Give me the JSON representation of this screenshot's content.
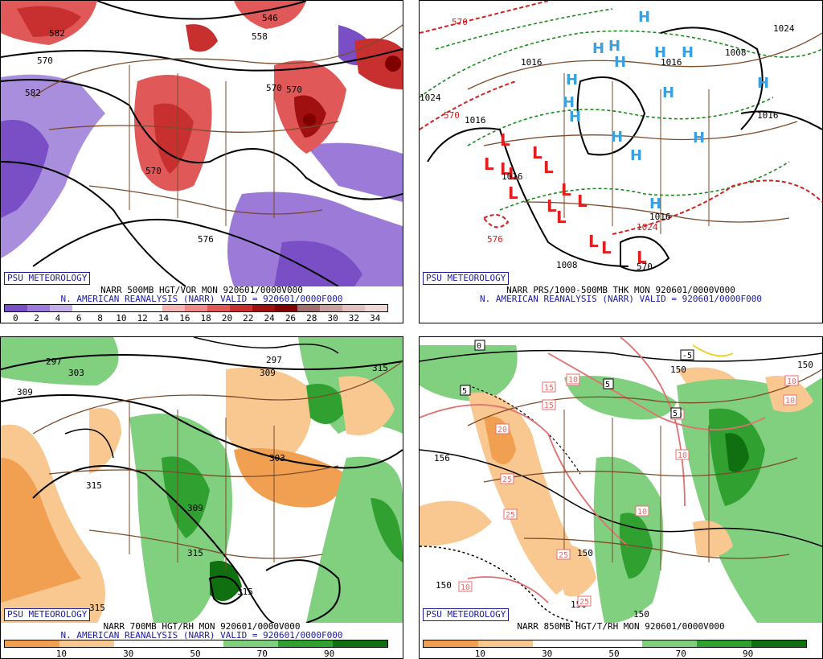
{
  "badge": "PSU METEOROLOGY",
  "panels": {
    "tl": {
      "line1": "NARR 500MB HGT/VOR MON 920601/0000V000",
      "line2": "N. AMERICAN REANALYSIS (NARR) VALID = 920601/0000F000",
      "contours": [
        "570",
        "570",
        "582",
        "576",
        "546",
        "558",
        "570",
        "582",
        "570"
      ],
      "colorbar": {
        "colors": [
          "#7a4fc6",
          "#9b7ad8",
          "#c3b0e8",
          "#ffffff",
          "#ffffff",
          "#ffffff",
          "#ffffff",
          "#f5b5b5",
          "#f08a8a",
          "#e05858",
          "#c83030",
          "#a01010",
          "#800000",
          "#a07070",
          "#c8a0a0",
          "#e0c0c0",
          "#f0d8d8"
        ],
        "ticks": [
          "0",
          "2",
          "4",
          "6",
          "8",
          "10",
          "12",
          "14",
          "16",
          "18",
          "20",
          "22",
          "24",
          "26",
          "28",
          "30",
          "32",
          "34"
        ]
      }
    },
    "tr": {
      "line1": "NARR PRS/1000-500MB THK MON 920601/0000V000",
      "line2": "N. AMERICAN REANALYSIS (NARR) VALID = 920601/0000F000",
      "contours": [
        "570",
        "1024",
        "1016",
        "1024",
        "1016",
        "1016",
        "570",
        "1016",
        "1016",
        "570",
        "1008",
        "1008",
        "1016",
        "1024",
        "576"
      ]
    },
    "bl": {
      "line1": "NARR 700MB HGT/RH MON 920601/0000V000",
      "line2": "N. AMERICAN REANALYSIS (NARR) VALID = 920601/0000F000",
      "contours": [
        "297",
        "303",
        "309",
        "297",
        "309",
        "315",
        "315",
        "309",
        "303",
        "315",
        "315",
        "315"
      ],
      "colorbar": {
        "colors": [
          "#f0a050",
          "#f8c890",
          "#ffffff",
          "#ffffff",
          "#80d080",
          "#30a030",
          "#107010"
        ],
        "ticks": [
          "10",
          "30",
          "50",
          "70",
          "90"
        ]
      }
    },
    "br": {
      "line1": "NARR 850MB HGT/T/RH MON 920601/0000V000",
      "contours": [
        "150",
        "150",
        "150",
        "150",
        "150",
        "150",
        "156"
      ],
      "temps": [
        "0",
        "5",
        "15",
        "15",
        "5",
        "10",
        "10",
        "20",
        "25",
        "25",
        "25",
        "25",
        "10",
        "10",
        "10",
        "10",
        "-5",
        "10",
        "10",
        "5"
      ],
      "colorbar": {
        "colors": [
          "#f0a050",
          "#f8c890",
          "#ffffff",
          "#ffffff",
          "#80d080",
          "#30a030",
          "#107010"
        ],
        "ticks": [
          "10",
          "30",
          "50",
          "70",
          "90"
        ]
      }
    }
  }
}
